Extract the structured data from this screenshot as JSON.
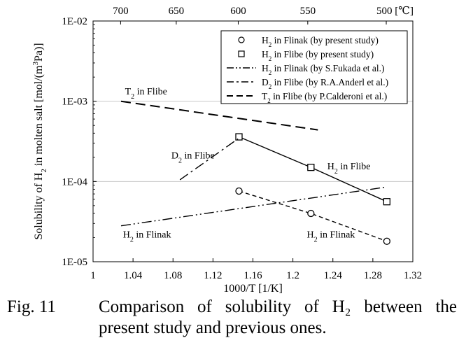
{
  "chart_data": {
    "type": "line",
    "xlabel": "1000/T [1/K]",
    "ylabel": "Solubility of H₂ in molten salt [mol/(m³Pa)]",
    "xlim": [
      1.0,
      1.32
    ],
    "ylim": [
      1e-05,
      0.01
    ],
    "yscale": "log",
    "grid": "horizontal",
    "x_ticks": [
      "1",
      "1.04",
      "1.08",
      "1.12",
      "1.16",
      "1.2",
      "1.24",
      "1.28",
      "1.32"
    ],
    "y_ticks": [
      "1E-05",
      "1E-04",
      "1E-03",
      "1E-02"
    ],
    "top_axis": {
      "unit": "[℃]",
      "ticks": [
        {
          "label": "700",
          "celsius": 700
        },
        {
          "label": "650",
          "celsius": 650
        },
        {
          "label": "600",
          "celsius": 600
        },
        {
          "label": "550",
          "celsius": 550
        },
        {
          "label": "500",
          "celsius": 500
        }
      ]
    },
    "legend_position": "top-right",
    "legend": [
      {
        "text": "H₂ in Flinak (by present study)",
        "symbol": "circle"
      },
      {
        "text": "H₂ in Flibe (by present study)",
        "symbol": "square"
      },
      {
        "text": "H₂ in Flinak (by S.Fukada et al.)",
        "symbol": "dash-dot-dot"
      },
      {
        "text": "D₂ in Flibe (by R.A.Anderl et al.)",
        "symbol": "dash-dot"
      },
      {
        "text": "T₂ in Flibe (by P.Calderoni et al.)",
        "symbol": "dash"
      }
    ],
    "series": [
      {
        "name": "H₂ in Flinak (by present study)",
        "style": "circle-dashed",
        "x": [
          1.146,
          1.218,
          1.294
        ],
        "y": [
          7.6e-05,
          4e-05,
          1.8e-05
        ]
      },
      {
        "name": "H₂ in Flibe (by present study)",
        "style": "square-solid",
        "x": [
          1.146,
          1.218,
          1.294
        ],
        "y": [
          0.00036,
          0.00015,
          5.6e-05
        ]
      },
      {
        "name": "H₂ in Flinak (by S.Fukada et al.)",
        "style": "dash-dot-dot",
        "x": [
          1.028,
          1.293
        ],
        "y": [
          2.8e-05,
          8.5e-05
        ]
      },
      {
        "name": "D₂ in Flibe (by R.A.Anderl et al.)",
        "style": "dash-dot",
        "x": [
          1.087,
          1.145
        ],
        "y": [
          0.000105,
          0.00034
        ]
      },
      {
        "name": "T₂ in Flibe (by P.Calderoni et al.)",
        "style": "dash",
        "x": [
          1.028,
          1.225
        ],
        "y": [
          0.001,
          0.00044
        ]
      }
    ],
    "annotations": [
      {
        "text": "T₂ in Flibe",
        "x": 1.053,
        "y": 0.00121
      },
      {
        "text": "D₂ in Flibe",
        "x": 1.1,
        "y": 0.000194
      },
      {
        "text": "H₂ in Flibe",
        "x": 1.256,
        "y": 0.000142
      },
      {
        "text": "H₂ in Flinak",
        "x": 1.054,
        "y": 2e-05
      },
      {
        "text": "H₂ in Flinak",
        "x": 1.238,
        "y": 2e-05
      }
    ]
  },
  "caption": {
    "number": "Fig.  11",
    "text": "Comparison of solubility of H₂ between the present study and previous ones."
  }
}
